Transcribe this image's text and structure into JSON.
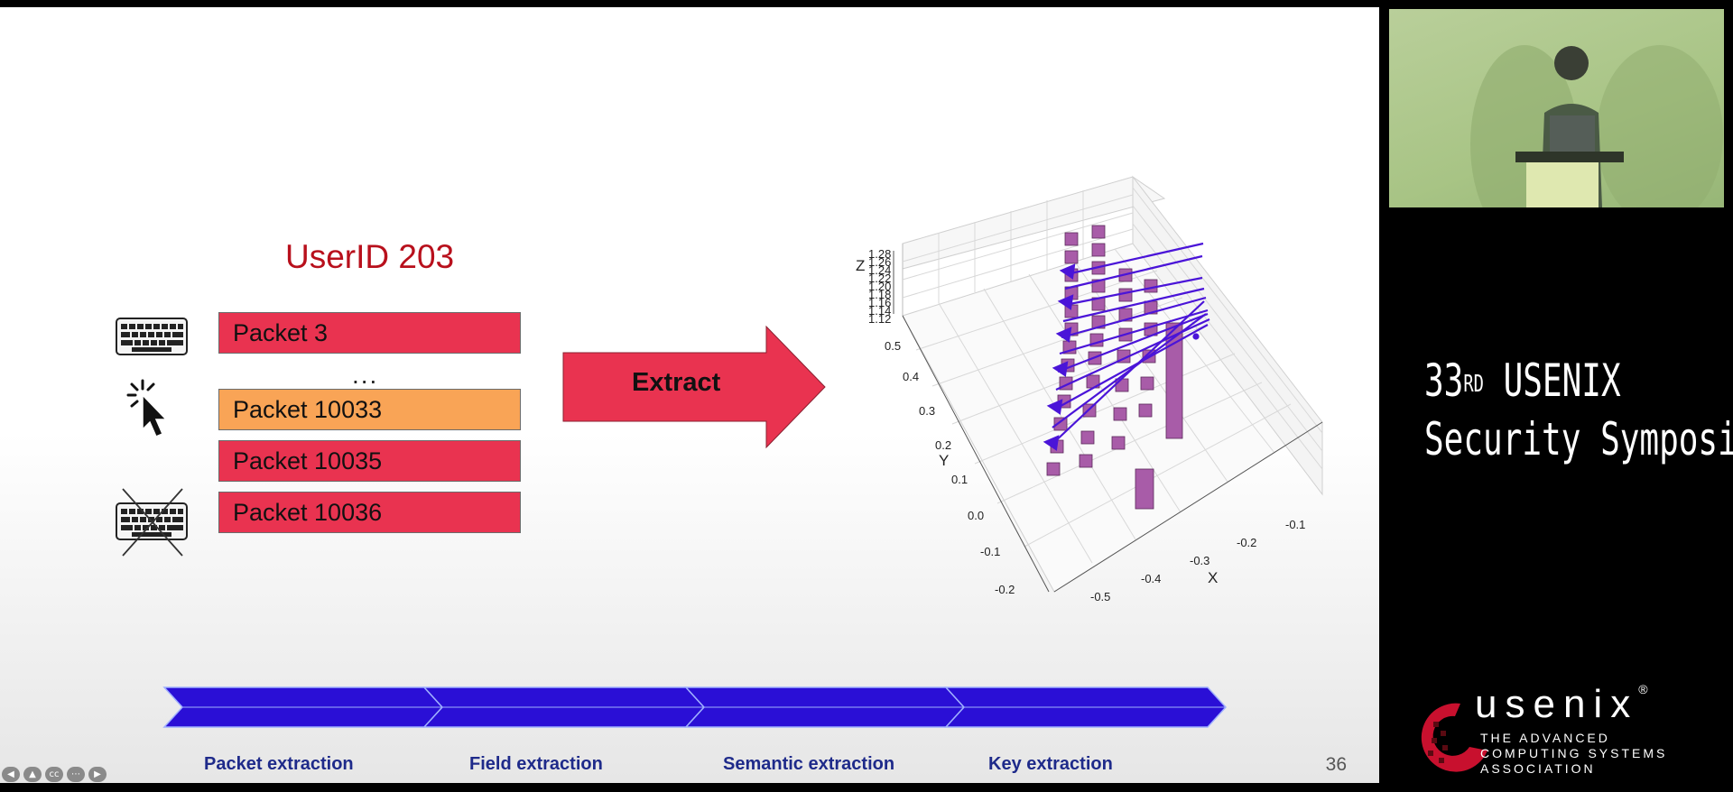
{
  "slide": {
    "user_id": "UserID 203",
    "packets": [
      "Packet 3",
      "Packet 10033",
      "Packet 10035",
      "Packet 10036"
    ],
    "ellipsis": "...",
    "extract_label": "Extract",
    "pipeline_stages": [
      "Packet extraction",
      "Field extraction",
      "Semantic extraction",
      "Key extraction"
    ],
    "page_number": "36",
    "colors": {
      "packet_red": "#e93350",
      "packet_orange": "#f9a456",
      "userid": "#b8101c",
      "pipeline": "#2a0fd6"
    }
  },
  "plot3d": {
    "z_label": "Z",
    "y_label": "Y",
    "x_label": "X",
    "z_ticks": [
      "1.28",
      "1.26",
      "1.24",
      "1.22",
      "1.20",
      "1.18",
      "1.16",
      "1.14",
      "1.12"
    ],
    "y_ticks": [
      "0.5",
      "0.4",
      "0.3",
      "0.2",
      "0.1",
      "0.0",
      "-0.1",
      "-0.2"
    ],
    "x_ticks": [
      "-0.5",
      "-0.4",
      "-0.3",
      "-0.2",
      "-0.1"
    ]
  },
  "player_controls": [
    "prev-icon",
    "upload-icon",
    "captions-icon",
    "more-icon",
    "next-icon"
  ],
  "sidebar": {
    "conference_line1": "33",
    "conference_sup": "RD",
    "conference_line1_rest": " USENIX",
    "conference_line2": "Security Symposium",
    "usenix_word": "usenix",
    "usenix_trademark": "®",
    "usenix_tagline": [
      "THE ADVANCED",
      "COMPUTING SYSTEMS",
      "ASSOCIATION"
    ]
  }
}
